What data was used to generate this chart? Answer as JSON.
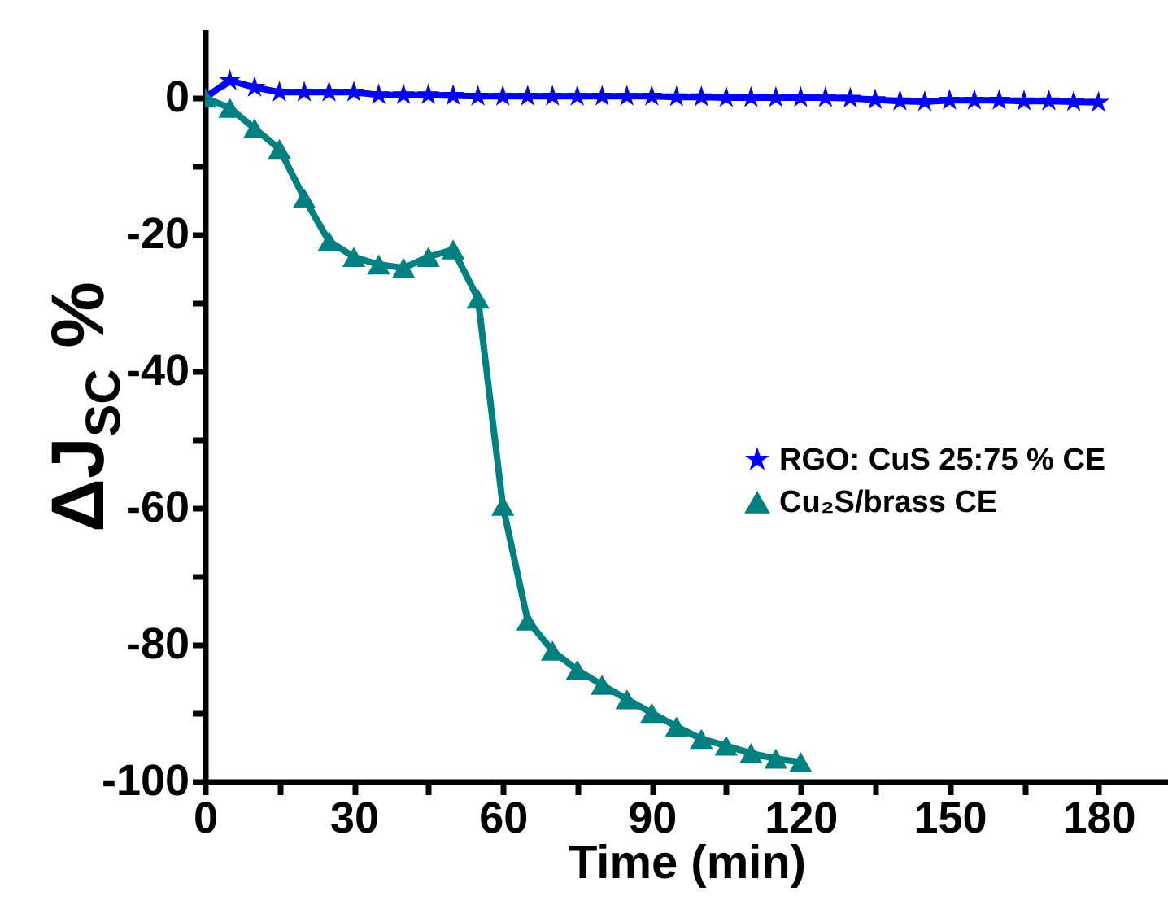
{
  "chart_data": {
    "type": "line",
    "xlabel": "Time (min)",
    "ylabel": "ΔJ$_{SC}$ %",
    "xlim": [
      0,
      194
    ],
    "ylim": [
      -100,
      10
    ],
    "xticks": [
      0,
      {
        "value": 15,
        "label": null
      },
      30,
      {
        "value": 45,
        "label": null
      },
      60,
      {
        "value": 75,
        "label": null
      },
      90,
      {
        "value": 105,
        "label": null
      },
      120,
      {
        "value": 135,
        "label": null
      },
      150,
      {
        "value": 165,
        "label": null
      },
      180
    ],
    "yticks": [
      -100,
      {
        "value": -90,
        "label": null
      },
      -80,
      {
        "value": -70,
        "label": null
      },
      -60,
      {
        "value": -50,
        "label": null
      },
      -40,
      {
        "value": -30,
        "label": null
      },
      -20,
      {
        "value": -10,
        "label": null
      },
      0
    ],
    "legend": "right",
    "grid": false,
    "line_style": "solid",
    "series": [
      {
        "name": "RGO: CuS 25:75 % CE",
        "color": "#0000ff",
        "marker": "star",
        "x": [
          0,
          5,
          10,
          15,
          20,
          25,
          30,
          35,
          40,
          45,
          50,
          55,
          60,
          65,
          70,
          75,
          80,
          85,
          90,
          95,
          100,
          105,
          110,
          115,
          120,
          125,
          130,
          135,
          140,
          145,
          150,
          155,
          160,
          165,
          170,
          175,
          180
        ],
        "values": [
          0,
          2.5,
          1.5,
          0.8,
          0.8,
          0.8,
          0.8,
          0.4,
          0.4,
          0.4,
          0.3,
          0.2,
          0.2,
          0.2,
          0.2,
          0.2,
          0.2,
          0.2,
          0.2,
          0.1,
          0.1,
          0,
          0,
          0,
          0,
          0,
          -0.1,
          -0.3,
          -0.5,
          -0.6,
          -0.4,
          -0.4,
          -0.4,
          -0.5,
          -0.5,
          -0.6,
          -0.7
        ]
      },
      {
        "name": "Cu₂S/brass CE",
        "color": "#008080",
        "marker": "triangle",
        "x": [
          0,
          5,
          10,
          15,
          20,
          25,
          30,
          35,
          40,
          45,
          50,
          55,
          60,
          65,
          70,
          75,
          80,
          85,
          90,
          95,
          100,
          105,
          110,
          115,
          120
        ],
        "values": [
          0,
          -1.5,
          -4.5,
          -7.5,
          -14.7,
          -21,
          -23.3,
          -24.4,
          -24.9,
          -23.3,
          -22.2,
          -29.4,
          -59.7,
          -76.5,
          -80.9,
          -83.7,
          -85.9,
          -88,
          -90,
          -92,
          -93.8,
          -94.8,
          -95.9,
          -96.7,
          -97.2
        ]
      }
    ]
  }
}
